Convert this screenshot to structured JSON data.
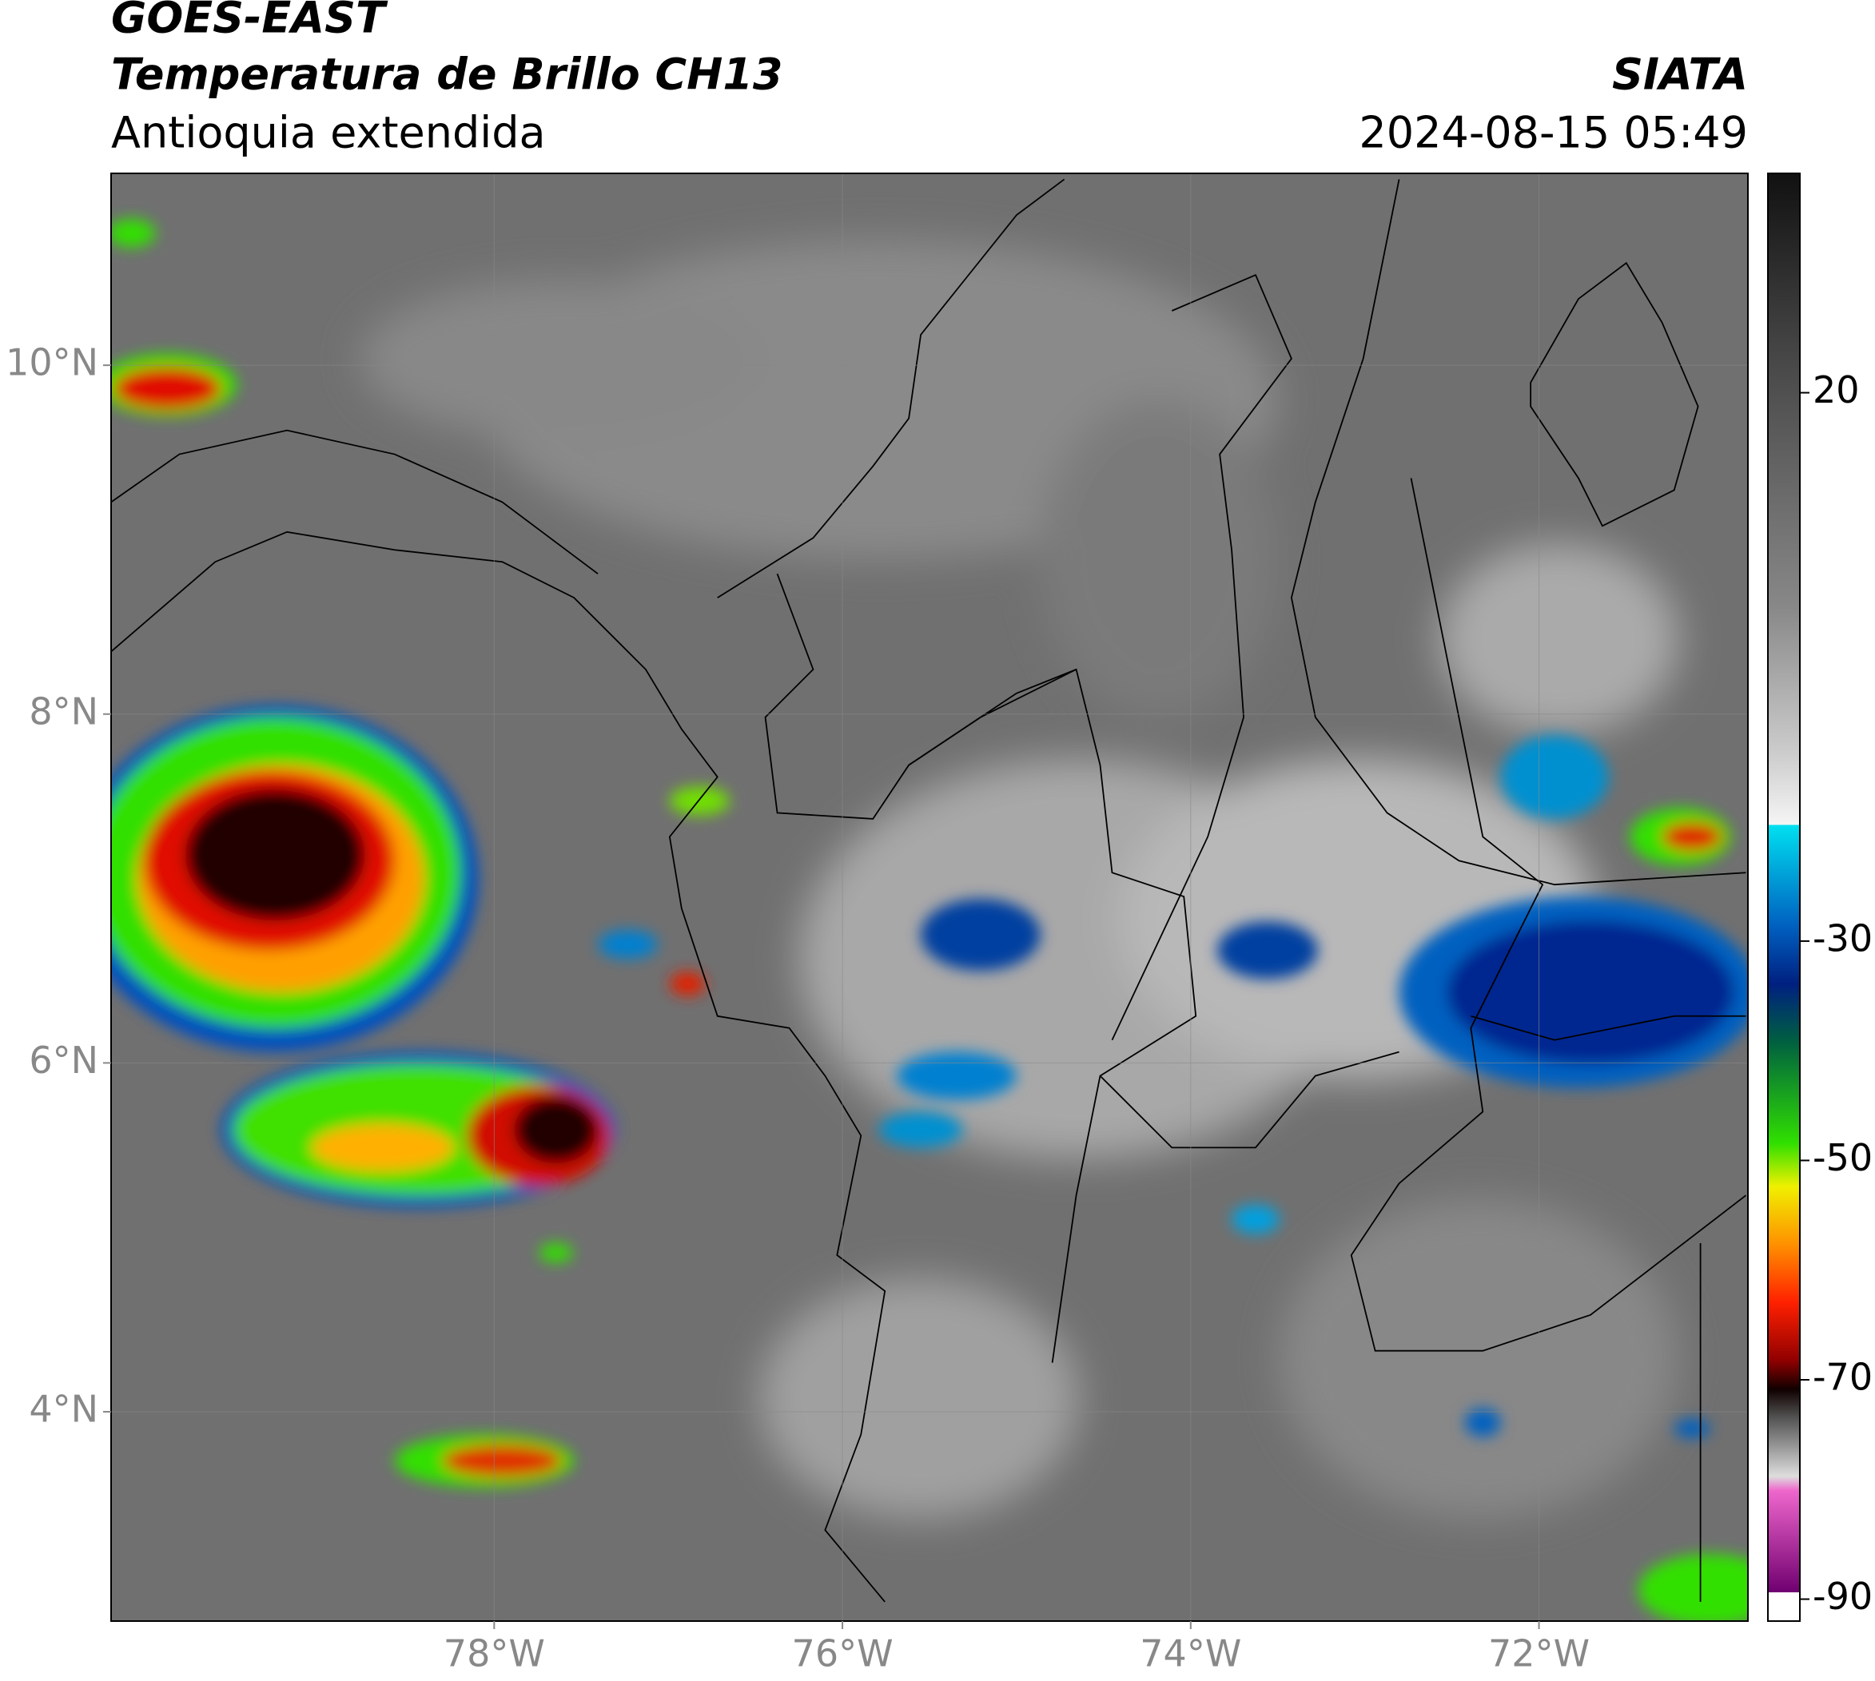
{
  "header": {
    "satellite": "GOES-EAST",
    "product": "Temperatura de Brillo CH13",
    "region": "Antioquia extendida",
    "source": "SIATA",
    "datetime": "2024-08-15 05:49"
  },
  "map": {
    "lon_range": [
      -80.2,
      -70.8
    ],
    "lat_range": [
      2.8,
      11.1
    ],
    "lon_ticks": [
      {
        "value": -78,
        "label": "78°W"
      },
      {
        "value": -76,
        "label": "76°W"
      },
      {
        "value": -74,
        "label": "74°W"
      },
      {
        "value": -72,
        "label": "72°W"
      }
    ],
    "lat_ticks": [
      {
        "value": 10,
        "label": "10°N"
      },
      {
        "value": 8,
        "label": "8°N"
      },
      {
        "value": 6,
        "label": "6°N"
      },
      {
        "value": 4,
        "label": "4°N"
      }
    ]
  },
  "colorbar": {
    "range": [
      -92,
      40
    ],
    "ticks": [
      20,
      -30,
      -50,
      -70,
      -90
    ]
  }
}
